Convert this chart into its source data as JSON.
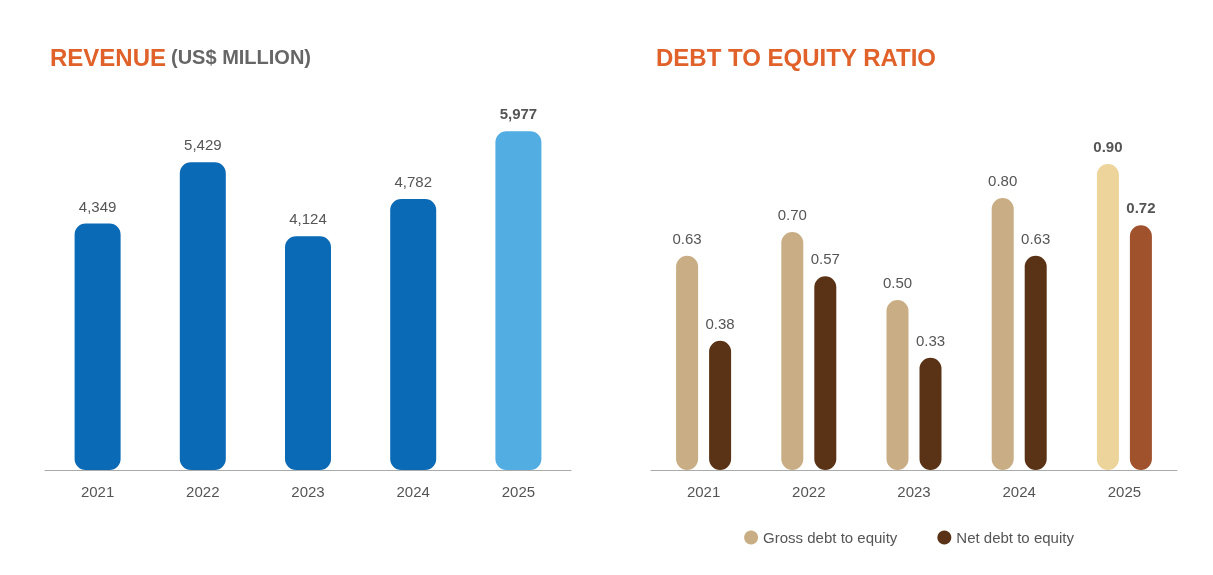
{
  "chart_data": [
    {
      "type": "bar",
      "title": "REVENUE",
      "subtitle": "(US$ MILLION)",
      "categories": [
        "2021",
        "2022",
        "2023",
        "2024",
        "2025"
      ],
      "values": [
        4349,
        5429,
        4124,
        4782,
        5977
      ],
      "value_labels": [
        "4,349",
        "5,429",
        "4,124",
        "4,782",
        "5,977"
      ],
      "colors": [
        "#0b6ab5",
        "#0b6ab5",
        "#0b6ab5",
        "#0b6ab5",
        "#52ade3"
      ]
    },
    {
      "type": "bar",
      "title": "DEBT TO EQUITY RATIO",
      "categories": [
        "2021",
        "2022",
        "2023",
        "2024",
        "2025"
      ],
      "series": [
        {
          "name": "Gross debt to equity",
          "color": "#c9ad84",
          "colors": [
            "#c9ad84",
            "#c9ad84",
            "#c9ad84",
            "#c9ad84",
            "#ecd49a"
          ],
          "values": [
            0.63,
            0.7,
            0.5,
            0.8,
            0.9
          ],
          "value_labels": [
            "0.63",
            "0.70",
            "0.50",
            "0.80",
            "0.90"
          ]
        },
        {
          "name": "Net debt to equity",
          "color": "#5a3216",
          "colors": [
            "#5a3216",
            "#5a3216",
            "#5a3216",
            "#5a3216",
            "#a0522d"
          ],
          "values": [
            0.38,
            0.57,
            0.33,
            0.63,
            0.72
          ],
          "value_labels": [
            "0.38",
            "0.57",
            "0.33",
            "0.63",
            "0.72"
          ]
        }
      ],
      "legend": "bottom"
    }
  ]
}
